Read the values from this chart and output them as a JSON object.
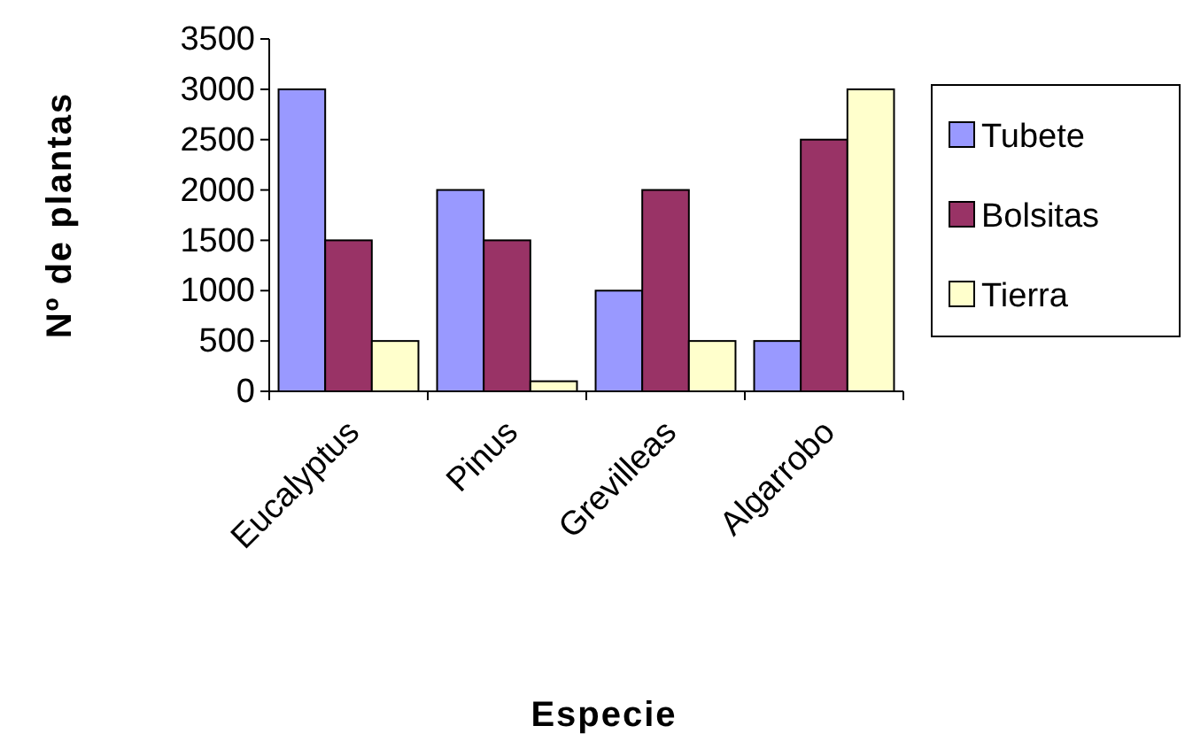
{
  "chart_data": {
    "type": "bar",
    "xlabel": "Especie",
    "ylabel": "Nº de plantas",
    "categories": [
      "Eucalyptus",
      "Pinus",
      "Grevilleas",
      "Algarrobo"
    ],
    "series": [
      {
        "name": "Tubete",
        "color": "#9999ff",
        "values": [
          3000,
          2000,
          1000,
          500
        ]
      },
      {
        "name": "Bolsitas",
        "color": "#993366",
        "values": [
          1500,
          1500,
          2000,
          2500
        ]
      },
      {
        "name": "Tierra",
        "color": "#ffffcc",
        "values": [
          500,
          100,
          500,
          3000
        ]
      }
    ],
    "ylim": [
      0,
      3500
    ],
    "yticks": [
      0,
      500,
      1000,
      1500,
      2000,
      2500,
      3000,
      3500
    ],
    "grid": false,
    "legend": "right"
  }
}
